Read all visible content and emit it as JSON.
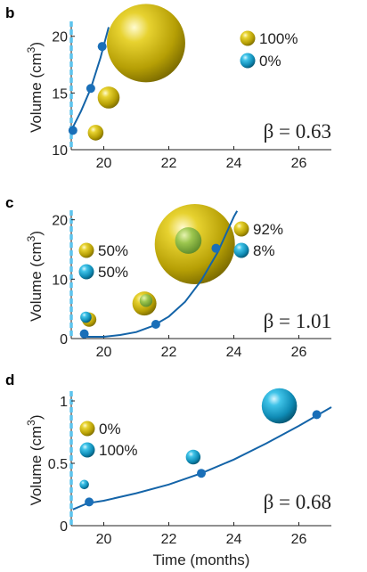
{
  "chart_data": [
    {
      "type": "scatter",
      "panel_label": "b",
      "ylabel": "Volume (cm3)",
      "xlabel": "",
      "xlim": [
        19,
        27
      ],
      "ylim": [
        10,
        21
      ],
      "xticks": [
        20,
        22,
        24,
        26
      ],
      "yticks": [
        10,
        15,
        20
      ],
      "grid": false,
      "beta_label": "β = 0.63",
      "fit_curve": [
        [
          19.0,
          11.7
        ],
        [
          19.3,
          13.4
        ],
        [
          19.6,
          15.4
        ],
        [
          19.9,
          18.1
        ],
        [
          20.15,
          20.8
        ]
      ],
      "points": [
        [
          19.05,
          11.7
        ],
        [
          19.6,
          15.4
        ],
        [
          19.95,
          19.1
        ]
      ],
      "spheres": [
        {
          "x": 19.75,
          "y": 11.5,
          "size": 0.2,
          "color": "#c8b200"
        },
        {
          "x": 20.15,
          "y": 14.6,
          "size": 0.28,
          "color": "#c8b200"
        },
        {
          "x": 21.3,
          "y": 19.4,
          "size": 1.0,
          "color": "#c8b200"
        }
      ],
      "legend": [
        {
          "label": "100%",
          "color": "#c8b200"
        },
        {
          "label": "0%",
          "color": "#1aa5cf"
        }
      ],
      "legend_position": "top-right"
    },
    {
      "type": "scatter",
      "panel_label": "c",
      "ylabel": "Volume (cm3)",
      "xlabel": "",
      "xlim": [
        19,
        27
      ],
      "ylim": [
        0,
        21
      ],
      "xticks": [
        20,
        22,
        24,
        26
      ],
      "yticks": [
        0,
        10,
        20
      ],
      "grid": false,
      "beta_label": "β = 1.01",
      "fit_curve": [
        [
          19.4,
          0.3
        ],
        [
          20.0,
          0.3
        ],
        [
          20.5,
          0.6
        ],
        [
          21.0,
          1.1
        ],
        [
          21.5,
          2.1
        ],
        [
          22.0,
          3.7
        ],
        [
          22.5,
          6.2
        ],
        [
          23.0,
          9.8
        ],
        [
          23.5,
          14.5
        ],
        [
          24.0,
          20.5
        ],
        [
          24.1,
          21.5
        ]
      ],
      "points": [
        [
          19.4,
          0.8
        ],
        [
          21.6,
          2.4
        ],
        [
          23.45,
          15.2
        ]
      ],
      "spheres": [
        {
          "x": 19.55,
          "y": 3.2,
          "size": 0.18,
          "color": "#c8b200"
        },
        {
          "x": 19.45,
          "y": 3.6,
          "size": 0.14,
          "color": "#1aa5cf"
        },
        {
          "x": 21.25,
          "y": 5.9,
          "size": 0.3,
          "color": "#c8b200"
        },
        {
          "x": 21.3,
          "y": 6.4,
          "size": 0.16,
          "color": "#7fb04a"
        },
        {
          "x": 22.8,
          "y": 15.9,
          "size": 1.0,
          "color": "#c8b200"
        },
        {
          "x": 22.6,
          "y": 16.5,
          "size": 0.33,
          "color": "#8fbf45"
        }
      ],
      "legend": [
        {
          "label": "50%",
          "color": "#c8b200"
        },
        {
          "label": "50%",
          "color": "#1aa5cf"
        },
        {
          "label": "92%",
          "color": "#c8b200"
        },
        {
          "label": "8%",
          "color": "#1aa5cf"
        }
      ],
      "legend_position": "top-left and top-right"
    },
    {
      "type": "scatter",
      "panel_label": "d",
      "ylabel": "Volume (cm3)",
      "xlabel": "Time (months)",
      "xlim": [
        19,
        27
      ],
      "ylim": [
        0,
        1.05
      ],
      "xticks": [
        20,
        22,
        24,
        26
      ],
      "yticks": [
        0,
        0.5,
        1
      ],
      "grid": false,
      "beta_label": "β = 0.68",
      "fit_curve": [
        [
          19.05,
          0.13
        ],
        [
          19.5,
          0.18
        ],
        [
          20.0,
          0.2
        ],
        [
          21.0,
          0.26
        ],
        [
          22.0,
          0.33
        ],
        [
          23.0,
          0.42
        ],
        [
          24.0,
          0.53
        ],
        [
          25.0,
          0.66
        ],
        [
          26.0,
          0.8
        ],
        [
          27.0,
          0.95
        ]
      ],
      "points": [
        [
          19.55,
          0.19
        ],
        [
          23.0,
          0.42
        ],
        [
          26.55,
          0.89
        ]
      ],
      "spheres": [
        {
          "x": 19.4,
          "y": 0.33,
          "size": 0.16,
          "color": "#1aa5cf"
        },
        {
          "x": 22.75,
          "y": 0.55,
          "size": 0.25,
          "color": "#1aa5cf"
        },
        {
          "x": 25.4,
          "y": 0.96,
          "size": 0.6,
          "color": "#1aa5cf"
        }
      ],
      "legend": [
        {
          "label": "0%",
          "color": "#c8b200"
        },
        {
          "label": "100%",
          "color": "#1aa5cf"
        }
      ],
      "legend_position": "top-left"
    }
  ],
  "colors": {
    "curve": "#1464a8",
    "point": "#1a6fb8",
    "dashed_line": "#5cc4ee",
    "gold": "#c8b200",
    "cyan": "#1aa5cf"
  }
}
